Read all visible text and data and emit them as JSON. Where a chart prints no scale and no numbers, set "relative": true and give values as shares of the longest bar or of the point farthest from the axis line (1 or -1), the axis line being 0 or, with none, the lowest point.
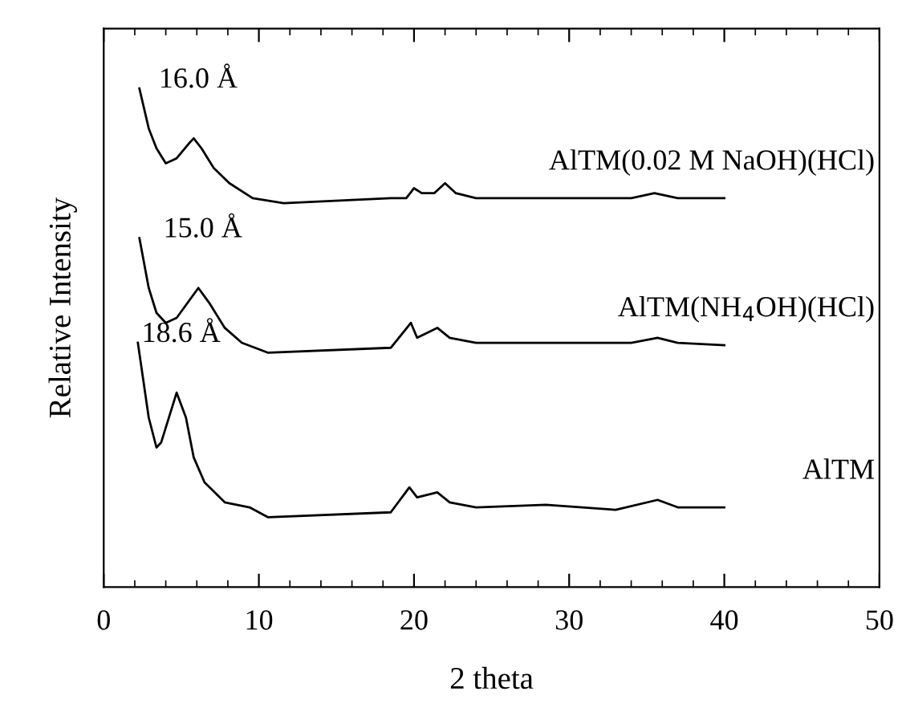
{
  "chart_data": {
    "type": "line",
    "relative": true,
    "xlabel": "2 theta",
    "ylabel": "Relative Intensity",
    "xlim": [
      0,
      50
    ],
    "xticks": [
      0,
      10,
      20,
      30,
      40,
      50
    ],
    "grid": false,
    "legend": false,
    "marker": "none",
    "line_style": "solid",
    "series": [
      {
        "name": "AlTM(0.02 M NaOH)(HCl)",
        "color": "#000000",
        "x": [
          2.3,
          2.9,
          3.4,
          4.0,
          4.7,
          5.5,
          5.8,
          6.3,
          7.1,
          8.1,
          9.6,
          11.6,
          18.5,
          19.5,
          20.0,
          20.5,
          21.3,
          22.0,
          22.7,
          24,
          30,
          34,
          35.5,
          37,
          40
        ],
        "values": [
          1.0,
          0.92,
          0.88,
          0.85,
          0.86,
          0.89,
          0.9,
          0.88,
          0.84,
          0.81,
          0.78,
          0.77,
          0.78,
          0.78,
          0.8,
          0.79,
          0.79,
          0.81,
          0.79,
          0.78,
          0.78,
          0.78,
          0.79,
          0.78,
          0.78
        ]
      },
      {
        "name": "AlTM(NH$_{4}$OH)(HCl)",
        "color": "#000000",
        "x": [
          2.3,
          2.9,
          3.4,
          4.0,
          4.7,
          6.1,
          6.8,
          7.8,
          8.9,
          10.6,
          18.5,
          19.8,
          20.2,
          21.5,
          22.3,
          24,
          30,
          34,
          35.7,
          37,
          40
        ],
        "values": [
          0.7,
          0.6,
          0.55,
          0.53,
          0.54,
          0.6,
          0.57,
          0.52,
          0.49,
          0.47,
          0.48,
          0.53,
          0.5,
          0.52,
          0.5,
          0.49,
          0.49,
          0.49,
          0.5,
          0.49,
          0.485
        ]
      },
      {
        "name": "AlTM",
        "color": "#000000",
        "x": [
          2.2,
          2.9,
          3.4,
          3.7,
          4.7,
          5.3,
          5.8,
          6.5,
          7.8,
          9.4,
          10.6,
          18.5,
          19.7,
          20.2,
          21.5,
          22.3,
          24,
          28.5,
          33,
          35.7,
          37,
          40
        ],
        "values": [
          0.49,
          0.34,
          0.28,
          0.29,
          0.39,
          0.34,
          0.26,
          0.21,
          0.17,
          0.16,
          0.14,
          0.15,
          0.2,
          0.18,
          0.19,
          0.17,
          0.16,
          0.165,
          0.155,
          0.175,
          0.16,
          0.16
        ]
      }
    ],
    "annotations": [
      {
        "text": "16.0 Å",
        "x": 5.8,
        "y": 0.9
      },
      {
        "text": "15.0 Å",
        "x": 6.1,
        "y": 0.6
      },
      {
        "text": "18.6 Å",
        "x": 4.7,
        "y": 0.39
      }
    ]
  }
}
